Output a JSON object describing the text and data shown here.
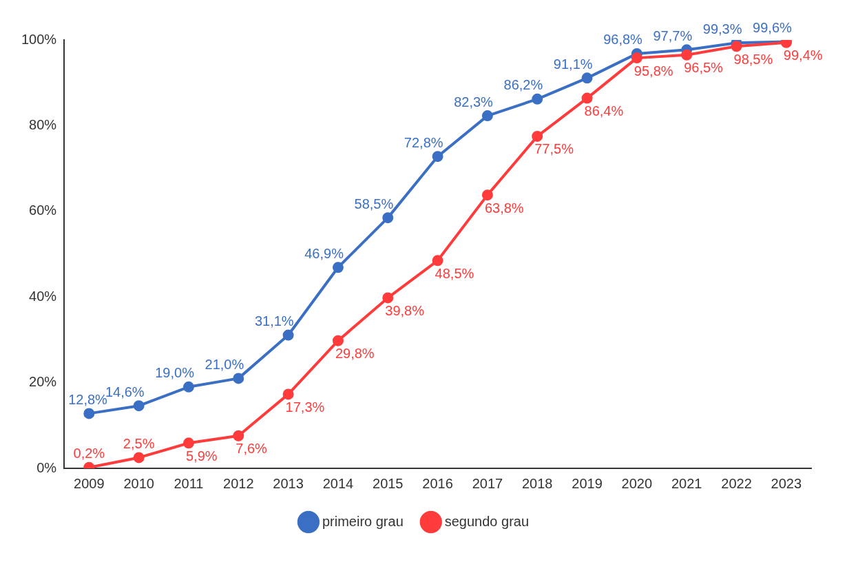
{
  "chart_data": {
    "type": "line",
    "categories": [
      "2009",
      "2010",
      "2011",
      "2012",
      "2013",
      "2014",
      "2015",
      "2016",
      "2017",
      "2018",
      "2019",
      "2020",
      "2021",
      "2022",
      "2023"
    ],
    "series": [
      {
        "name": "primeiro grau",
        "color": "#3a6fc4",
        "values": [
          12.8,
          14.6,
          19.0,
          21.0,
          31.1,
          46.9,
          58.5,
          72.8,
          82.3,
          86.2,
          91.1,
          96.8,
          97.7,
          99.3,
          99.6
        ],
        "value_labels": [
          "12,8%",
          "14,6%",
          "19,0%",
          "21,0%",
          "31,1%",
          "46,9%",
          "58,5%",
          "72,8%",
          "82,3%",
          "86,2%",
          "91,1%",
          "96,8%",
          "97,7%",
          "99,3%",
          "99,6%"
        ]
      },
      {
        "name": "segundo grau",
        "color": "#ff3b3b",
        "values": [
          0.2,
          2.5,
          5.9,
          7.6,
          17.3,
          29.8,
          39.8,
          48.5,
          63.8,
          77.5,
          86.4,
          95.8,
          96.5,
          98.5,
          99.4
        ],
        "value_labels": [
          "0,2%",
          "2,5%",
          "5,9%",
          "7,6%",
          "17,3%",
          "29,8%",
          "39,8%",
          "48,5%",
          "63,8%",
          "77,5%",
          "86,4%",
          "95,8%",
          "96,5%",
          "98,5%",
          "99,4%"
        ]
      }
    ],
    "ylim": [
      0,
      100
    ],
    "yticks": [
      {
        "value": 0,
        "label": "0%"
      },
      {
        "value": 20,
        "label": "20%"
      },
      {
        "value": 40,
        "label": "40%"
      },
      {
        "value": 60,
        "label": "60%"
      },
      {
        "value": 80,
        "label": "80%"
      },
      {
        "value": 100,
        "label": "100%"
      }
    ],
    "grid": false,
    "legend": "bottom",
    "marker": "circle",
    "line_style": "solid"
  }
}
